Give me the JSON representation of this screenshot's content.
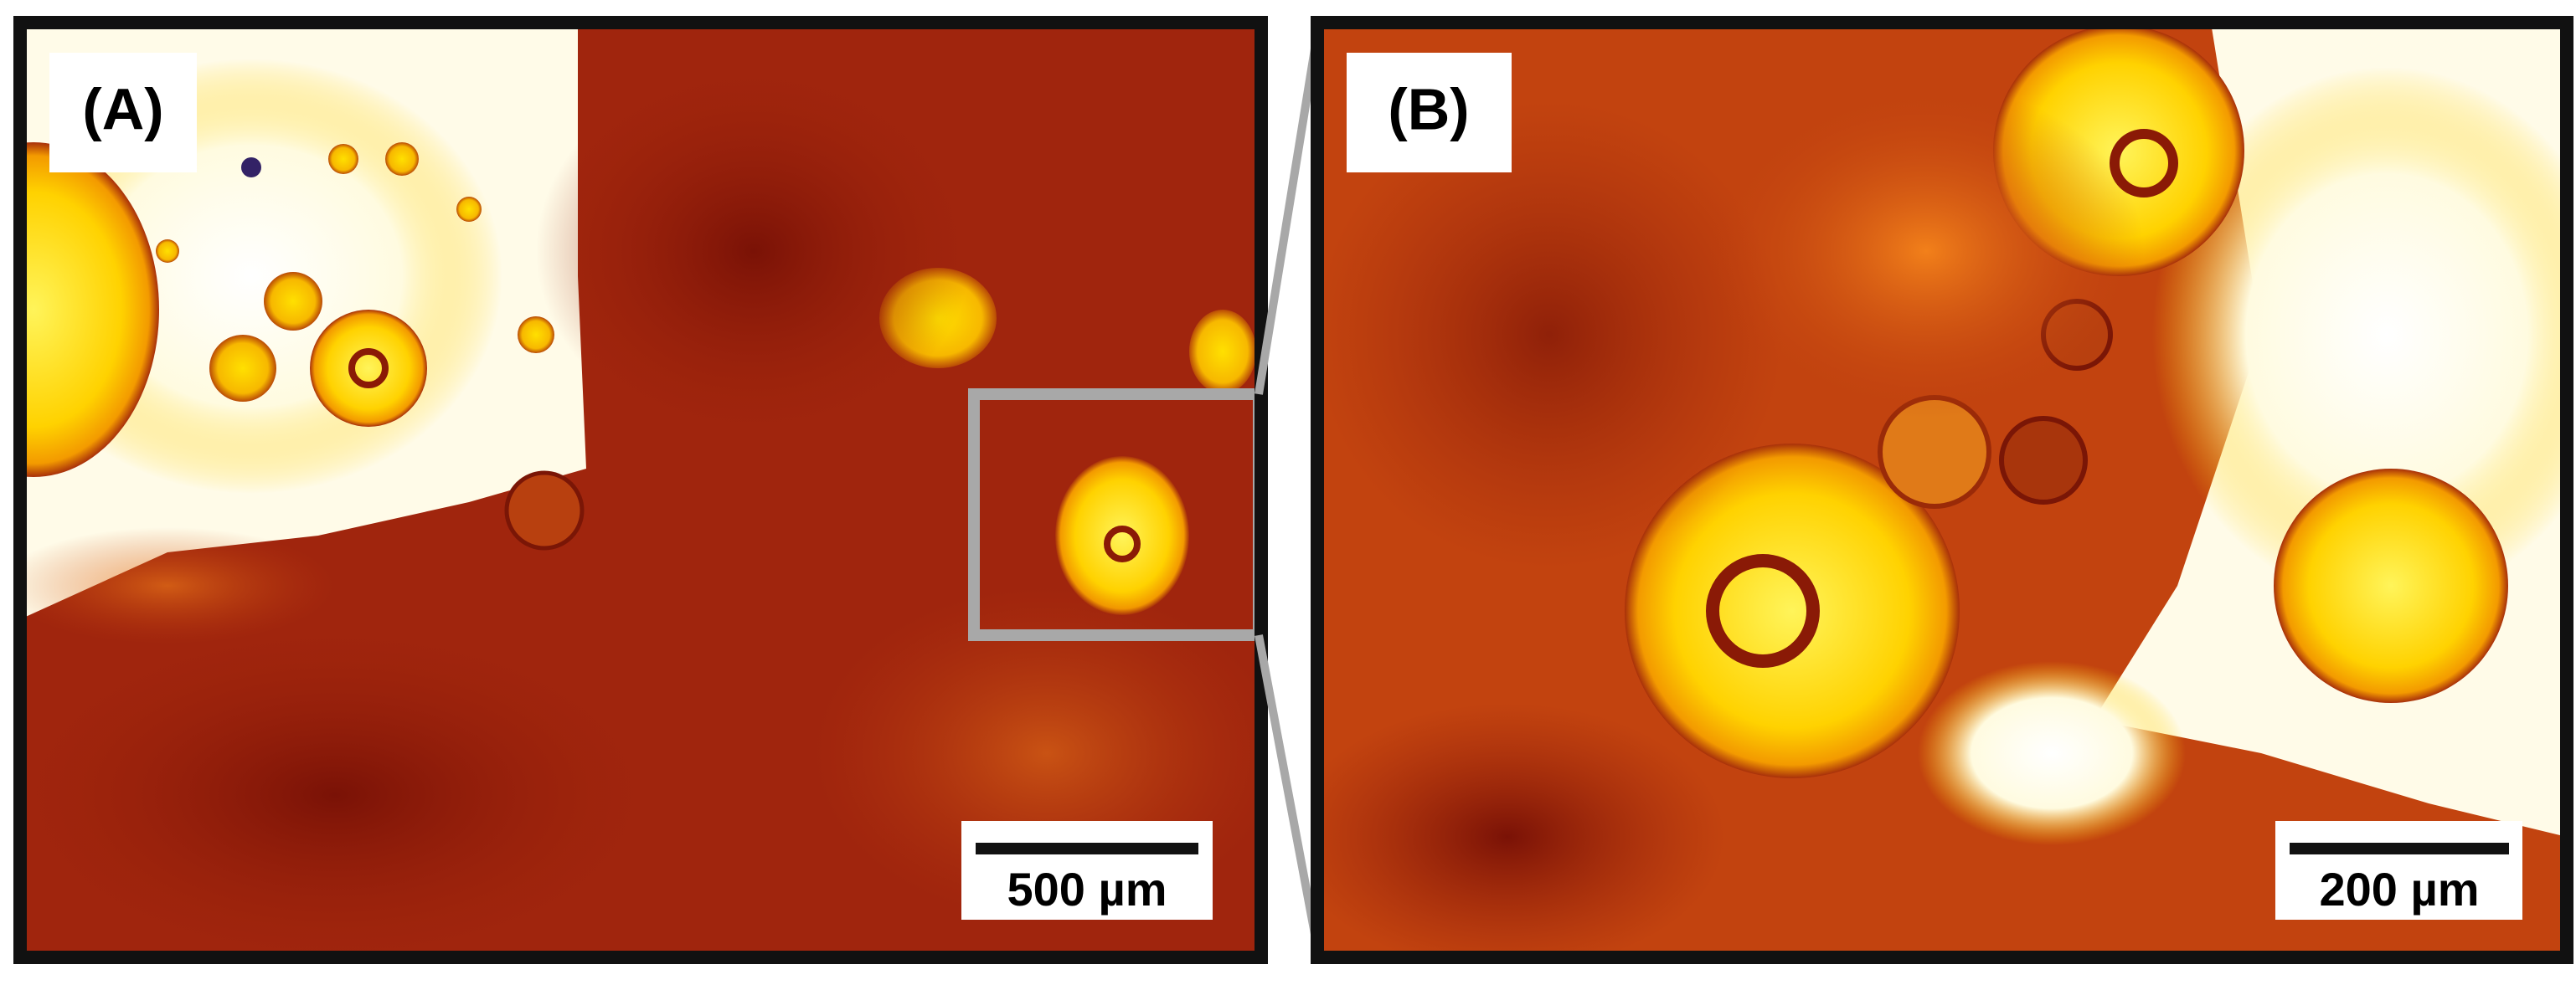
{
  "panels": [
    {
      "label": "(A)",
      "scale_bar": "500 µm"
    },
    {
      "label": "(B)",
      "scale_bar": "200 µm"
    }
  ]
}
